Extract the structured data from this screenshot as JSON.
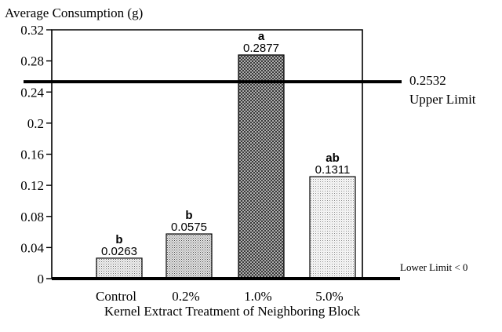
{
  "chart_data": {
    "type": "bar",
    "ylabel": "Average Consumption (g)",
    "xlabel": "Kernel Extract Treatment of Neighboring Block",
    "ylim": [
      0,
      0.32
    ],
    "y_ticks": [
      "0",
      "0.04",
      "0.08",
      "0.12",
      "0.16",
      "0.2",
      "0.24",
      "0.28",
      "0.32"
    ],
    "y_tick_values": [
      0,
      0.04,
      0.08,
      0.12,
      0.16,
      0.2,
      0.24,
      0.28,
      0.32
    ],
    "categories": [
      "Control",
      "0.2%",
      "1.0%",
      "5.0%"
    ],
    "values": [
      0.0263,
      0.0575,
      0.2877,
      0.1311
    ],
    "value_labels": [
      "0.0263",
      "0.0575",
      "0.2877",
      "0.1311"
    ],
    "significance_letters": [
      "b",
      "b",
      "a",
      "ab"
    ],
    "upper_limit": {
      "value": 0.2532,
      "value_label": "0.2532",
      "label": "Upper Limit"
    },
    "lower_limit_label": "Lower Limit < 0",
    "grid": false,
    "legend": "none"
  }
}
